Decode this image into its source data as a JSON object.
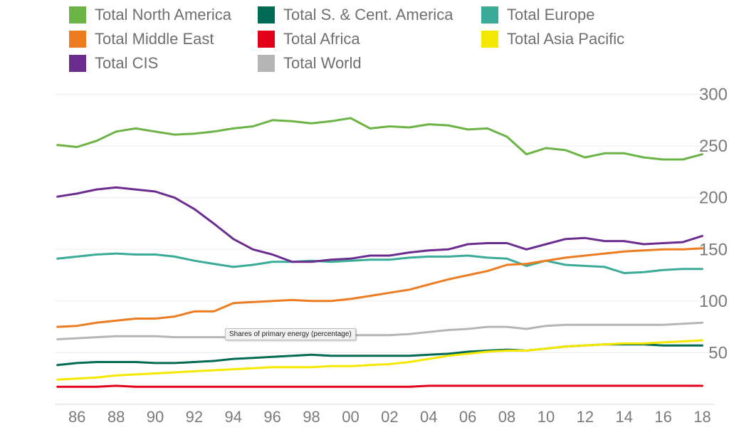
{
  "legend": {
    "items": [
      {
        "label": "Total North America",
        "color": "#6ab344"
      },
      {
        "label": "Total S. & Cent. America",
        "color": "#006b54"
      },
      {
        "label": "Total Europe",
        "color": "#3aab96"
      },
      {
        "label": "Total Middle East",
        "color": "#ed7b1f"
      },
      {
        "label": "Total Africa",
        "color": "#e3001b"
      },
      {
        "label": "Total Asia Pacific",
        "color": "#f5e800"
      },
      {
        "label": "Total CIS",
        "color": "#6a2d8f"
      },
      {
        "label": "Total World",
        "color": "#b5b5b5"
      }
    ]
  },
  "tooltip": {
    "text": "Shares of primary energy (percentage)"
  },
  "chart_data": {
    "type": "line",
    "x": [
      1985,
      1986,
      1987,
      1988,
      1989,
      1990,
      1991,
      1992,
      1993,
      1994,
      1995,
      1996,
      1997,
      1998,
      1999,
      2000,
      2001,
      2002,
      2003,
      2004,
      2005,
      2006,
      2007,
      2008,
      2009,
      2010,
      2011,
      2012,
      2013,
      2014,
      2015,
      2016,
      2017,
      2018
    ],
    "x_tick_labels": [
      "86",
      "88",
      "90",
      "92",
      "94",
      "96",
      "98",
      "00",
      "02",
      "04",
      "06",
      "08",
      "10",
      "12",
      "14",
      "16",
      "18"
    ],
    "x_tick_values": [
      1986,
      1988,
      1990,
      1992,
      1994,
      1996,
      1998,
      2000,
      2002,
      2004,
      2006,
      2008,
      2010,
      2012,
      2014,
      2016,
      2018
    ],
    "y_ticks": [
      50,
      100,
      150,
      200,
      250,
      300
    ],
    "ylim": [
      0,
      310
    ],
    "xlim": [
      1984.9,
      2018.6
    ],
    "grid": true,
    "legend_position": "top",
    "series": [
      {
        "name": "Total North America",
        "color": "#6ab344",
        "values": [
          251,
          249,
          255,
          264,
          267,
          264,
          261,
          262,
          264,
          267,
          269,
          275,
          274,
          272,
          274,
          277,
          267,
          269,
          268,
          271,
          270,
          266,
          267,
          259,
          242,
          248,
          246,
          239,
          243,
          243,
          239,
          237,
          237,
          242
        ]
      },
      {
        "name": "Total S. & Cent. America",
        "color": "#006b54",
        "values": [
          38,
          40,
          41,
          41,
          41,
          40,
          40,
          41,
          42,
          44,
          45,
          46,
          47,
          48,
          47,
          47,
          47,
          47,
          47,
          48,
          49,
          51,
          52,
          53,
          52,
          54,
          56,
          57,
          58,
          58,
          58,
          57,
          57,
          57
        ]
      },
      {
        "name": "Total Europe",
        "color": "#3aab96",
        "values": [
          141,
          143,
          145,
          146,
          145,
          145,
          143,
          139,
          136,
          133,
          135,
          138,
          138,
          139,
          138,
          139,
          140,
          140,
          142,
          143,
          143,
          144,
          142,
          141,
          134,
          139,
          135,
          134,
          133,
          127,
          128,
          130,
          131,
          131
        ]
      },
      {
        "name": "Total Middle East",
        "color": "#ed7b1f",
        "values": [
          75,
          76,
          79,
          81,
          83,
          83,
          85,
          90,
          90,
          98,
          99,
          100,
          101,
          100,
          100,
          102,
          105,
          108,
          111,
          116,
          121,
          125,
          129,
          135,
          136,
          139,
          142,
          144,
          146,
          148,
          149,
          150,
          150,
          151
        ]
      },
      {
        "name": "Total Africa",
        "color": "#e3001b",
        "values": [
          17,
          17,
          17,
          18,
          17,
          17,
          17,
          17,
          17,
          17,
          17,
          17,
          17,
          17,
          17,
          17,
          17,
          17,
          17,
          18,
          18,
          18,
          18,
          18,
          18,
          18,
          18,
          18,
          18,
          18,
          18,
          18,
          18,
          18
        ]
      },
      {
        "name": "Total Asia Pacific",
        "color": "#f5e800",
        "values": [
          24,
          25,
          26,
          28,
          29,
          30,
          31,
          32,
          33,
          34,
          35,
          36,
          36,
          36,
          37,
          37,
          38,
          39,
          41,
          44,
          47,
          49,
          51,
          52,
          52,
          54,
          56,
          57,
          58,
          59,
          59,
          60,
          61,
          62
        ]
      },
      {
        "name": "Total CIS",
        "color": "#6a2d8f",
        "values": [
          201,
          204,
          208,
          210,
          208,
          206,
          200,
          189,
          175,
          160,
          150,
          145,
          138,
          138,
          140,
          141,
          144,
          144,
          147,
          149,
          150,
          155,
          156,
          156,
          150,
          155,
          160,
          161,
          158,
          158,
          155,
          156,
          157,
          163
        ]
      },
      {
        "name": "Total World",
        "color": "#b5b5b5",
        "values": [
          63,
          64,
          65,
          66,
          66,
          66,
          65,
          65,
          65,
          65,
          65,
          66,
          66,
          66,
          66,
          67,
          67,
          67,
          68,
          70,
          72,
          73,
          75,
          75,
          73,
          76,
          77,
          77,
          77,
          77,
          77,
          77,
          78,
          79
        ]
      }
    ]
  }
}
